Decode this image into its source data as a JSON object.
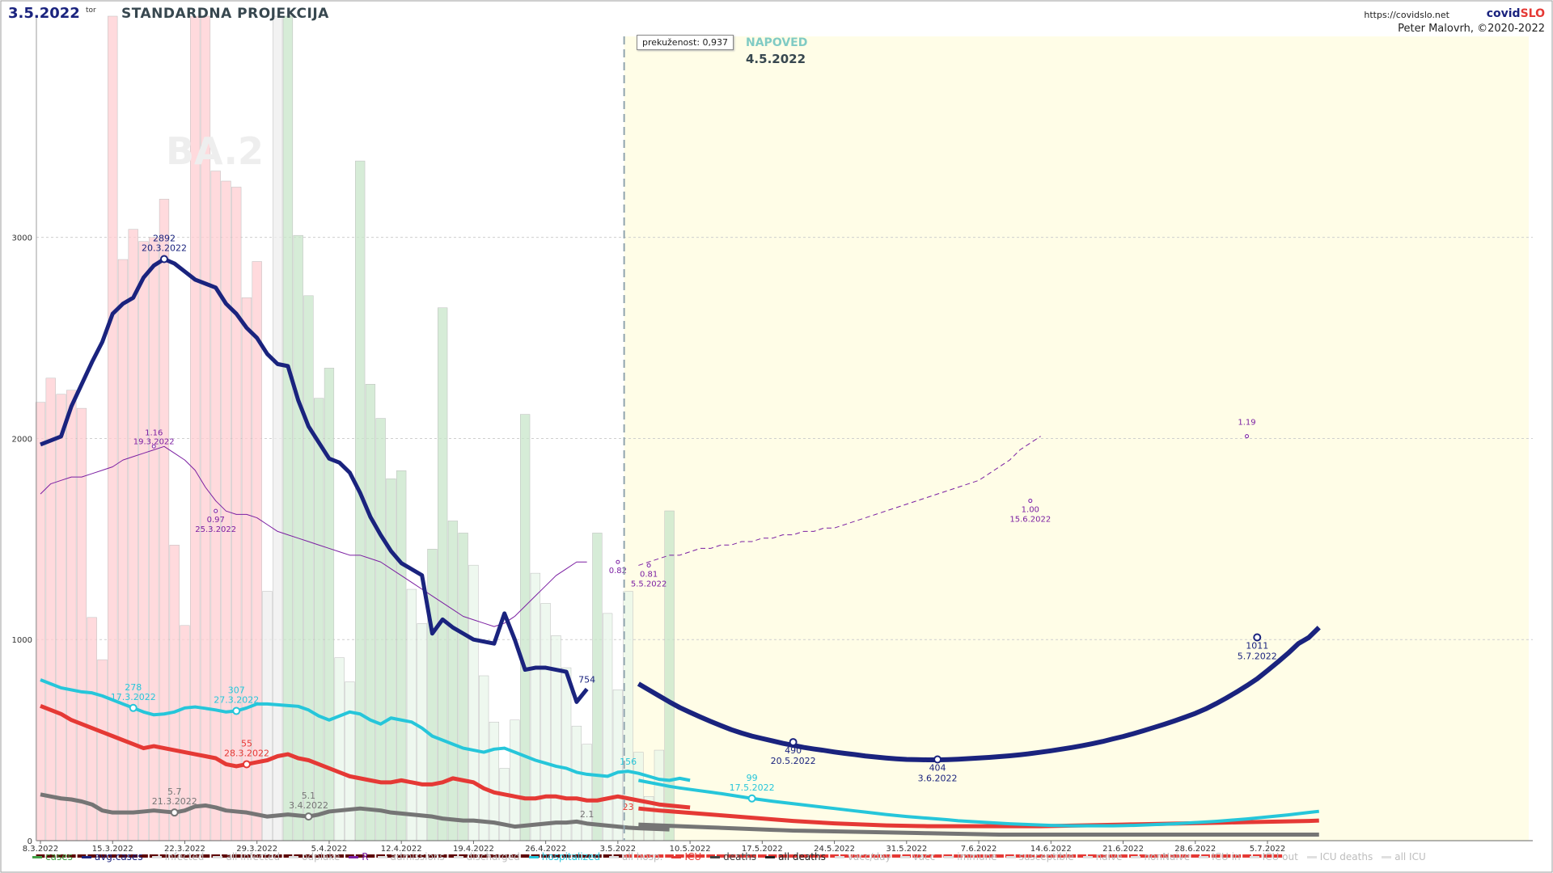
{
  "header": {
    "date": "3.5.2022",
    "day": "tor",
    "title": "STANDARDNA PROJEKCIJA",
    "url": "https://covidslo.net",
    "brand_a": "covid",
    "brand_b": "SLO",
    "author": "Peter Malovrh, ©2020-2022"
  },
  "overfit_label": "prekuženost: 0,937",
  "forecast": {
    "label": "NAPOVED",
    "date": "4.5.2022"
  },
  "variant_label": "BA.2",
  "colors": {
    "cases_bar": "#ffcdd2",
    "cases_bar_hist": "#c8e6c9",
    "avg_cases": "#1a237e",
    "hospitalized": "#26c6da",
    "icu": "#e53935",
    "deaths": "#757575",
    "r": "#7b1fa2",
    "forecast_bg": "#fffde7"
  },
  "legend": [
    {
      "label": "cases",
      "color": "#43a047",
      "on": true,
      "icon": "bar-icon"
    },
    {
      "label": "avg.cases",
      "color": "#1a237e",
      "on": true
    },
    {
      "label": "infected",
      "color": "#bdbdbd",
      "on": false
    },
    {
      "label": "all infected",
      "color": "#bdbdbd",
      "on": false
    },
    {
      "label": "odplake",
      "color": "#bdbdbd",
      "on": false
    },
    {
      "label": "R",
      "color": "#7b1fa2",
      "on": true
    },
    {
      "label": "admissions",
      "color": "#bdbdbd",
      "on": false
    },
    {
      "label": "discharged",
      "color": "#bdbdbd",
      "on": false
    },
    {
      "label": "hospitalized",
      "color": "#26c6da",
      "on": true
    },
    {
      "label": "all hosp.",
      "color": "#bdbdbd",
      "on": false
    },
    {
      "label": "ICU",
      "color": "#e53935",
      "on": true
    },
    {
      "label": "deaths",
      "color": "#424242",
      "on": true
    },
    {
      "label": "all deaths",
      "color": "#212121",
      "on": true
    },
    {
      "label": "vacc/day",
      "color": "#bdbdbd",
      "on": false
    },
    {
      "label": "vacc",
      "color": "#bdbdbd",
      "on": false
    },
    {
      "label": "immune",
      "color": "#bdbdbd",
      "on": false
    },
    {
      "label": "susceptible",
      "color": "#bdbdbd",
      "on": false
    },
    {
      "label": "naive",
      "color": "#bdbdbd",
      "on": false
    },
    {
      "label": "nonNaive",
      "color": "#bdbdbd",
      "on": false
    },
    {
      "label": "ICU in",
      "color": "#bdbdbd",
      "on": false
    },
    {
      "label": "ICU out",
      "color": "#bdbdbd",
      "on": false
    },
    {
      "label": "ICU deaths",
      "color": "#bdbdbd",
      "on": false
    },
    {
      "label": "all ICU",
      "color": "#bdbdbd",
      "on": false
    }
  ],
  "chart_data": {
    "type": "bar+line",
    "x_ticks": [
      "8.3.2022",
      "15.3.2022",
      "22.3.2022",
      "29.3.2022",
      "5.4.2022",
      "12.4.2022",
      "19.4.2022",
      "26.4.2022",
      "3.5.2022",
      "10.5.2022",
      "17.5.2022",
      "24.5.2022",
      "31.5.2022",
      "7.6.2022",
      "14.6.2022",
      "21.6.2022",
      "28.6.2022",
      "5.7.2022"
    ],
    "y_ticks": [
      0,
      1000,
      2000,
      3000
    ],
    "ylim": [
      0,
      4100
    ],
    "x_start": "8.3.2022",
    "forecast_start": "4.5.2022",
    "cases": [
      2180,
      2300,
      2220,
      2240,
      2150,
      1110,
      900,
      4100,
      2890,
      3040,
      2980,
      3000,
      3190,
      1470,
      1070,
      4100,
      4100,
      3330,
      3280,
      3250,
      2700,
      2880,
      1240,
      4100,
      4100,
      3010,
      2710,
      2200,
      2350,
      910,
      790,
      3380,
      2270,
      2100,
      1800,
      1840,
      1250,
      1080,
      1450,
      2650,
      1590,
      1530,
      1370,
      820,
      590,
      360,
      600,
      2120,
      1330,
      1180,
      1020,
      860,
      570,
      480,
      1530,
      1130,
      750,
      1240,
      440,
      220,
      450,
      1640
    ],
    "avg_cases": [
      1970,
      1990,
      2010,
      2160,
      2270,
      2380,
      2480,
      2620,
      2670,
      2700,
      2800,
      2860,
      2892,
      2870,
      2830,
      2790,
      2770,
      2750,
      2670,
      2620,
      2550,
      2500,
      2420,
      2370,
      2360,
      2190,
      2060,
      1980,
      1900,
      1880,
      1830,
      1730,
      1610,
      1520,
      1440,
      1380,
      1350,
      1320,
      1030,
      1100,
      1060,
      1030,
      1000,
      990,
      980,
      1130,
      1000,
      850,
      860,
      860,
      850,
      840,
      690,
      754
    ],
    "avg_cases_forecast": [
      780,
      750,
      720,
      690,
      662,
      638,
      615,
      593,
      572,
      552,
      535,
      520,
      508,
      496,
      484,
      474,
      464,
      456,
      449,
      441,
      434,
      428,
      421,
      416,
      411,
      407,
      404,
      403,
      402,
      402,
      403,
      405,
      408,
      411,
      414,
      418,
      422,
      427,
      433,
      440,
      447,
      455,
      463,
      472,
      482,
      493,
      506,
      518,
      532,
      547,
      563,
      579,
      596,
      614,
      633,
      655,
      681,
      709,
      739,
      771,
      805,
      846,
      888,
      932,
      980,
      1010,
      1060
    ],
    "r": [
      1.02,
      1.05,
      1.06,
      1.07,
      1.07,
      1.08,
      1.09,
      1.1,
      1.12,
      1.13,
      1.14,
      1.15,
      1.16,
      1.14,
      1.12,
      1.09,
      1.04,
      1.0,
      0.97,
      0.96,
      0.96,
      0.95,
      0.93,
      0.91,
      0.9,
      0.89,
      0.88,
      0.87,
      0.86,
      0.85,
      0.84,
      0.84,
      0.83,
      0.82,
      0.8,
      0.78,
      0.76,
      0.74,
      0.72,
      0.7,
      0.68,
      0.66,
      0.65,
      0.64,
      0.63,
      0.64,
      0.66,
      0.69,
      0.72,
      0.75,
      0.78,
      0.8,
      0.82,
      0.82
    ],
    "r_forecast": [
      0.81,
      0.82,
      0.83,
      0.84,
      0.84,
      0.85,
      0.86,
      0.86,
      0.87,
      0.87,
      0.88,
      0.88,
      0.89,
      0.89,
      0.9,
      0.9,
      0.91,
      0.91,
      0.92,
      0.92,
      0.93,
      0.94,
      0.95,
      0.96,
      0.97,
      0.98,
      0.99,
      1.0,
      1.01,
      1.02,
      1.03,
      1.04,
      1.05,
      1.06,
      1.08,
      1.1,
      1.12,
      1.15,
      1.17,
      1.19
    ],
    "r_labels": [
      {
        "value": "1.16",
        "date": "19.3.2022"
      },
      {
        "value": "0.97",
        "date": "25.3.2022"
      },
      {
        "value": "0.82",
        "date": ""
      },
      {
        "value": "0.81",
        "date": "5.5.2022"
      },
      {
        "value": "1.00",
        "date": "15.6.2022"
      },
      {
        "value": "1.19",
        "date": ""
      }
    ],
    "hospitalized": [
      800,
      780,
      760,
      750,
      740,
      735,
      720,
      700,
      680,
      660,
      640,
      626,
      630,
      640,
      660,
      665,
      658,
      650,
      640,
      645,
      660,
      680,
      680,
      676,
      672,
      668,
      650,
      620,
      600,
      620,
      640,
      630,
      600,
      580,
      610,
      600,
      590,
      560,
      520,
      500,
      480,
      460,
      450,
      440,
      455,
      460,
      440,
      420,
      400,
      385,
      370,
      360,
      340,
      330,
      325,
      320,
      340,
      345,
      335,
      320,
      305,
      300,
      310,
      300
    ],
    "hospitalized_forecast": [
      300,
      290,
      280,
      270,
      262,
      255,
      248,
      241,
      234,
      226,
      218,
      210,
      203,
      196,
      190,
      184,
      178,
      172,
      166,
      160,
      154,
      148,
      142,
      136,
      130,
      125,
      120,
      116,
      112,
      108,
      104,
      99,
      96,
      93,
      90,
      87,
      84,
      82,
      80,
      78,
      76,
      75,
      74,
      74,
      74,
      74,
      74,
      75,
      76,
      78,
      80,
      82,
      84,
      87,
      90,
      93,
      96,
      100,
      104,
      108,
      113,
      118,
      123,
      128,
      134,
      140,
      146
    ],
    "icu": [
      670,
      650,
      630,
      600,
      580,
      560,
      540,
      520,
      500,
      480,
      460,
      470,
      460,
      450,
      440,
      430,
      420,
      410,
      380,
      370,
      380,
      390,
      400,
      420,
      430,
      410,
      400,
      380,
      360,
      340,
      320,
      310,
      300,
      290,
      290,
      300,
      290,
      280,
      280,
      290,
      310,
      300,
      290,
      260,
      240,
      230,
      220,
      210,
      210,
      220,
      220,
      210,
      210,
      200,
      200,
      210,
      220,
      210,
      200,
      190,
      180,
      175,
      170,
      165
    ],
    "icu_forecast": [
      160,
      155,
      150,
      146,
      142,
      138,
      134,
      130,
      126,
      122,
      118,
      114,
      110,
      106,
      102,
      98,
      95,
      92,
      89,
      86,
      84,
      82,
      80,
      78,
      76,
      75,
      74,
      73,
      72,
      72,
      72,
      72,
      72,
      72,
      72,
      72,
      72,
      72,
      72,
      72,
      73,
      74,
      75,
      76,
      77,
      78,
      79,
      80,
      81,
      82,
      83,
      84,
      85,
      86,
      87,
      88,
      89,
      90,
      91,
      92,
      93,
      94,
      95,
      96,
      97,
      98,
      100
    ],
    "deaths": [
      230,
      220,
      210,
      205,
      195,
      180,
      150,
      140,
      140,
      140,
      145,
      150,
      145,
      140,
      150,
      170,
      175,
      165,
      150,
      145,
      140,
      130,
      120,
      125,
      130,
      125,
      120,
      130,
      145,
      150,
      155,
      160,
      155,
      150,
      140,
      135,
      130,
      125,
      120,
      110,
      105,
      100,
      100,
      95,
      90,
      80,
      70,
      75,
      80,
      85,
      90,
      90,
      95,
      85,
      80,
      75,
      70,
      65,
      62,
      60,
      58,
      56
    ],
    "deaths_forecast": [
      80,
      78,
      76,
      74,
      72,
      70,
      68,
      66,
      64,
      62,
      60,
      58,
      56,
      54,
      52,
      50,
      49,
      48,
      47,
      46,
      45,
      44,
      43,
      42,
      41,
      40,
      39,
      38,
      37,
      36,
      35,
      34,
      33,
      32,
      31,
      30,
      30,
      30,
      30,
      30,
      30,
      30,
      30,
      30,
      30,
      30,
      30,
      30,
      30,
      30,
      30,
      30,
      30,
      30,
      30,
      30,
      30,
      30,
      30,
      30,
      30,
      30,
      30,
      30,
      30,
      30,
      30
    ],
    "annotations": [
      {
        "series": "avg_cases",
        "value": "2892",
        "date": "20.3.2022"
      },
      {
        "series": "avg_cases",
        "value": "754",
        "date": ""
      },
      {
        "series": "avg_cases",
        "value": "490",
        "date": "20.5.2022"
      },
      {
        "series": "avg_cases",
        "value": "404",
        "date": "3.6.2022"
      },
      {
        "series": "avg_cases",
        "value": "1011",
        "date": "5.7.2022"
      },
      {
        "series": "hospitalized",
        "value": "278",
        "date": "17.3.2022"
      },
      {
        "series": "hospitalized",
        "value": "307",
        "date": "27.3.2022"
      },
      {
        "series": "hospitalized",
        "value": "156",
        "date": ""
      },
      {
        "series": "hospitalized",
        "value": "99",
        "date": "17.5.2022"
      },
      {
        "series": "icu",
        "value": "55",
        "date": "28.3.2022"
      },
      {
        "series": "icu",
        "value": "23",
        "date": ""
      },
      {
        "series": "deaths",
        "value": "5.7",
        "date": "21.3.2022"
      },
      {
        "series": "deaths",
        "value": "5.1",
        "date": "3.4.2022"
      },
      {
        "series": "deaths",
        "value": "2.1",
        "date": ""
      }
    ]
  }
}
